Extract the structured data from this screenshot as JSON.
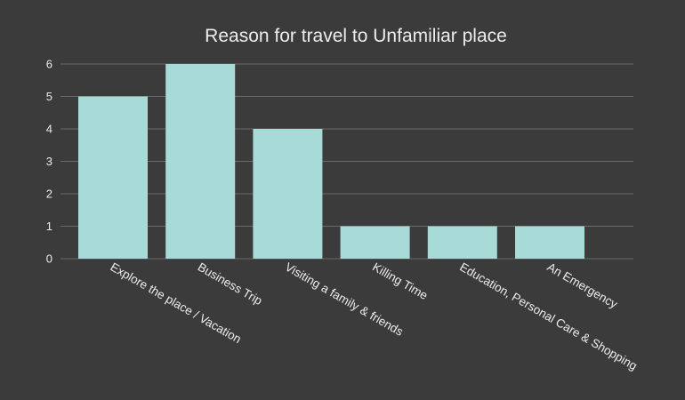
{
  "chart_data": {
    "type": "bar",
    "title": "Reason for travel to Unfamiliar place",
    "xlabel": "",
    "ylabel": "",
    "categories": [
      "Explore the place / Vacation",
      "Business Trip",
      "Visiting a family & friends",
      "Killing Time",
      "Education, Personal Care & Shopping",
      "An Emergency"
    ],
    "values": [
      5,
      6,
      4,
      1,
      1,
      1
    ],
    "ylim": [
      0,
      6
    ],
    "yticks": [
      "0",
      "1",
      "2",
      "3",
      "4",
      "5",
      "6"
    ],
    "grid": true,
    "legend": "none",
    "colors": {
      "background": "#3b3b3b",
      "bar": "#a8dbd7",
      "text": "#ececec",
      "grid": "#6a6a6a"
    }
  }
}
